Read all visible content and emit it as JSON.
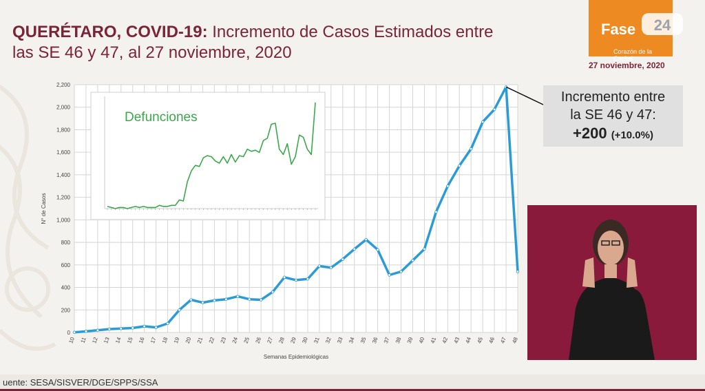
{
  "title": {
    "bold": "QUERÉTARO, COVID-19:",
    "line1": "Incremento de Casos Estimados entre",
    "line2": "las SE 46 y 47, al 27 noviembre, 2020"
  },
  "logo": {
    "text": "Fase",
    "sub": "Corazón de la Capital"
  },
  "date": "27 noviembre, 2020",
  "callout": {
    "line1": "Incremento entre",
    "line2": "la SE 46 y 47:",
    "value": "+200",
    "pct": "(+10.0%)"
  },
  "source": "uente: SESA/SISVER/DGE/SPPS/SSA",
  "colors": {
    "main_line": "#2b9bd6",
    "inset_line": "#3aa84a",
    "title": "#7b2437",
    "logo": "#ee8a22",
    "interpreter_bg": "#8a1a3b"
  },
  "chart_data": [
    {
      "type": "line",
      "xlabel": "Semanas Epidemiológicas",
      "ylabel": "N° de Casos",
      "x": [
        "10",
        "11",
        "12",
        "13",
        "14",
        "15",
        "16",
        "17",
        "18",
        "19",
        "20",
        "21",
        "22",
        "23",
        "24",
        "25",
        "26",
        "27",
        "28",
        "29",
        "30",
        "31",
        "32",
        "33",
        "34",
        "35",
        "36",
        "37",
        "38",
        "39",
        "40",
        "41",
        "42",
        "43",
        "44",
        "45",
        "46",
        "47",
        "48"
      ],
      "y_ticks": [
        "0",
        "200",
        "400",
        "600",
        "800",
        "1,000",
        "1,200",
        "1,400",
        "1,600",
        "1,800",
        "2,000",
        "2,200"
      ],
      "ylim": [
        0,
        2200
      ],
      "grid": true,
      "series": [
        {
          "values": [
            2,
            10,
            20,
            30,
            35,
            40,
            55,
            45,
            80,
            200,
            290,
            265,
            285,
            295,
            320,
            295,
            290,
            360,
            490,
            465,
            475,
            590,
            575,
            650,
            740,
            825,
            735,
            510,
            540,
            640,
            740,
            1070,
            1300,
            1480,
            1630,
            1870,
            1980,
            2180,
            540
          ]
        }
      ]
    },
    {
      "type": "line",
      "title": "Defunciones",
      "grid": false,
      "series": [
        {
          "values": [
            2,
            1,
            0,
            1,
            1,
            0,
            1,
            2,
            1,
            2,
            1,
            1,
            1,
            3,
            2,
            2,
            3,
            3,
            8,
            7,
            25,
            35,
            40,
            39,
            47,
            49,
            48,
            44,
            42,
            48,
            42,
            50,
            43,
            49,
            48,
            55,
            53,
            54,
            52,
            63,
            65,
            78,
            79,
            55,
            50,
            60,
            41,
            48,
            68,
            66,
            55,
            50,
            98
          ]
        }
      ]
    }
  ]
}
